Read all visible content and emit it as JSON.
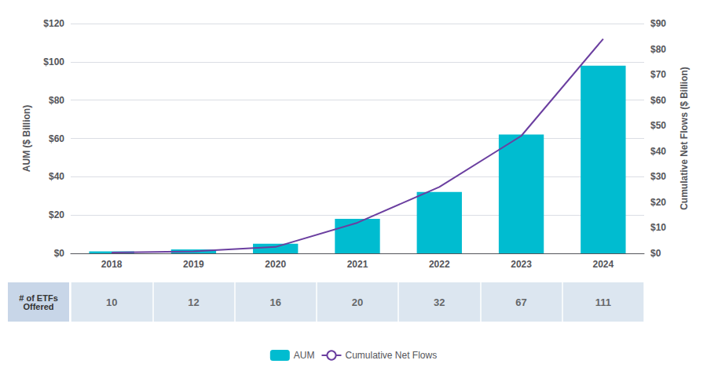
{
  "chart_data": {
    "type": "bar",
    "categories": [
      "2018",
      "2019",
      "2020",
      "2021",
      "2022",
      "2023",
      "2024"
    ],
    "series": [
      {
        "name": "AUM",
        "type": "bar",
        "color": "#00BCD0",
        "values": [
          1.0,
          2.0,
          5.0,
          18.0,
          32.0,
          62.0,
          98.0
        ]
      },
      {
        "name": "Cumulative Net Flows",
        "type": "line",
        "color": "#6B3FA0",
        "axis": "y2",
        "values": [
          0.3,
          0.8,
          2.5,
          12.0,
          26.0,
          46.0,
          84.0
        ]
      }
    ],
    "ylabel": "AUM ($ Billion)",
    "y2label": "Cumulative Net Flows ($ Billion)",
    "ylim": [
      0,
      120
    ],
    "yticks": [
      {
        "value": 0,
        "label": "$0"
      },
      {
        "value": 20,
        "label": "$20"
      },
      {
        "value": 40,
        "label": "$40"
      },
      {
        "value": 60,
        "label": "$60"
      },
      {
        "value": 80,
        "label": "$80"
      },
      {
        "value": 100,
        "label": "$100"
      },
      {
        "value": 120,
        "label": "$120"
      }
    ],
    "y2lim": [
      0,
      90
    ],
    "y2ticks": [
      {
        "value": 0,
        "label": "$0"
      },
      {
        "value": 10,
        "label": "$10"
      },
      {
        "value": 20,
        "label": "$20"
      },
      {
        "value": 30,
        "label": "$30"
      },
      {
        "value": 40,
        "label": "$40"
      },
      {
        "value": 50,
        "label": "$50"
      },
      {
        "value": 60,
        "label": "$60"
      },
      {
        "value": 70,
        "label": "$70"
      },
      {
        "value": 80,
        "label": "$80"
      },
      {
        "value": 90,
        "label": "$90"
      }
    ],
    "grid": true,
    "legend": "bottom",
    "table": {
      "label": "# of ETFs\nOffered",
      "values": [
        10,
        12,
        16,
        20,
        32,
        67,
        111
      ]
    }
  }
}
